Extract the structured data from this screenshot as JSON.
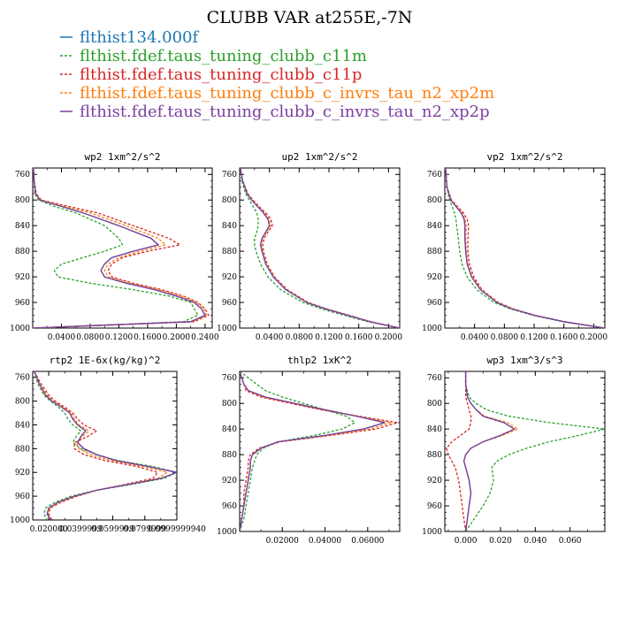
{
  "figure_title": "CLUBB VAR at255E,-7N",
  "legend": [
    {
      "name": "flthist134.000f",
      "color": "#1f77b4",
      "dash": "solid"
    },
    {
      "name": "flthist.fdef.taus_tuning_clubb_c11m",
      "color": "#2ca02c",
      "dash": "dashed"
    },
    {
      "name": "flthist.fdef.taus_tuning_clubb_c11p",
      "color": "#d62728",
      "dash": "dashed"
    },
    {
      "name": "flthist.fdef.taus_tuning_clubb_c_invrs_tau_n2_xp2m",
      "color": "#ff7f0e",
      "dash": "dashed"
    },
    {
      "name": "flthist.fdef.taus_tuning_clubb_c_invrs_tau_n2_xp2p",
      "color": "#7b3fa0",
      "dash": "solid"
    }
  ],
  "chart_data": [
    {
      "type": "line",
      "title": "wp2  1xm^2/s^2",
      "xlim": [
        0,
        0.25
      ],
      "ylim": [
        1000,
        750
      ],
      "x_ticks": [
        0.04,
        0.08,
        0.12,
        0.16,
        0.2,
        0.24
      ],
      "x_tick_labels": [
        "0.0400",
        "0.0800",
        "0.1200",
        "0.1600",
        "0.2000",
        "0.2400"
      ],
      "y_ticks": [
        760,
        800,
        840,
        880,
        920,
        960,
        1000
      ],
      "y": [
        750,
        770,
        790,
        800,
        810,
        820,
        840,
        860,
        870,
        880,
        890,
        900,
        910,
        920,
        930,
        940,
        950,
        960,
        970,
        980,
        990,
        1000
      ],
      "series": [
        {
          "values": [
            0.001,
            0.002,
            0.004,
            0.01,
            0.04,
            0.07,
            0.12,
            0.165,
            0.175,
            0.14,
            0.11,
            0.1,
            0.095,
            0.1,
            0.13,
            0.17,
            0.2,
            0.225,
            0.235,
            0.24,
            0.22,
            0.0
          ]
        },
        {
          "values": [
            0.001,
            0.002,
            0.003,
            0.008,
            0.03,
            0.06,
            0.1,
            0.12,
            0.125,
            0.1,
            0.07,
            0.04,
            0.03,
            0.035,
            0.08,
            0.14,
            0.19,
            0.22,
            0.225,
            0.23,
            0.21,
            0.0
          ]
        },
        {
          "values": [
            0.001,
            0.002,
            0.005,
            0.012,
            0.05,
            0.09,
            0.14,
            0.19,
            0.205,
            0.16,
            0.125,
            0.11,
            0.105,
            0.11,
            0.14,
            0.18,
            0.21,
            0.23,
            0.24,
            0.245,
            0.225,
            0.0
          ]
        },
        {
          "values": [
            0.001,
            0.002,
            0.004,
            0.011,
            0.045,
            0.08,
            0.13,
            0.175,
            0.185,
            0.15,
            0.12,
            0.105,
            0.1,
            0.105,
            0.135,
            0.175,
            0.205,
            0.228,
            0.238,
            0.242,
            0.222,
            0.0
          ]
        },
        {
          "values": [
            0.001,
            0.002,
            0.004,
            0.01,
            0.04,
            0.07,
            0.12,
            0.165,
            0.175,
            0.14,
            0.11,
            0.1,
            0.095,
            0.1,
            0.13,
            0.17,
            0.2,
            0.225,
            0.235,
            0.24,
            0.22,
            0.0
          ]
        }
      ]
    },
    {
      "type": "line",
      "title": "up2  1xm^2/s^2",
      "xlim": [
        0,
        0.215
      ],
      "ylim": [
        1000,
        750
      ],
      "x_ticks": [
        0.04,
        0.08,
        0.12,
        0.16,
        0.2
      ],
      "x_tick_labels": [
        "0.0400",
        "0.0800",
        "0.1200",
        "0.1600",
        "0.2000"
      ],
      "y_ticks": [
        760,
        800,
        840,
        880,
        920,
        960,
        1000
      ],
      "y": [
        750,
        770,
        790,
        800,
        810,
        820,
        830,
        840,
        850,
        860,
        870,
        880,
        900,
        920,
        940,
        960,
        970,
        980,
        990,
        1000
      ],
      "series": [
        {
          "values": [
            0.001,
            0.004,
            0.01,
            0.016,
            0.024,
            0.032,
            0.038,
            0.04,
            0.035,
            0.03,
            0.028,
            0.03,
            0.035,
            0.045,
            0.062,
            0.09,
            0.115,
            0.145,
            0.175,
            0.215
          ]
        },
        {
          "values": [
            0.001,
            0.003,
            0.008,
            0.013,
            0.018,
            0.023,
            0.025,
            0.025,
            0.023,
            0.02,
            0.02,
            0.022,
            0.028,
            0.038,
            0.055,
            0.085,
            0.11,
            0.14,
            0.172,
            0.215
          ]
        },
        {
          "values": [
            0.001,
            0.004,
            0.011,
            0.018,
            0.026,
            0.035,
            0.042,
            0.044,
            0.038,
            0.033,
            0.031,
            0.032,
            0.037,
            0.047,
            0.064,
            0.092,
            0.117,
            0.147,
            0.176,
            0.215
          ]
        },
        {
          "values": [
            0.001,
            0.004,
            0.01,
            0.017,
            0.025,
            0.033,
            0.04,
            0.042,
            0.036,
            0.031,
            0.029,
            0.031,
            0.036,
            0.046,
            0.063,
            0.091,
            0.116,
            0.146,
            0.175,
            0.215
          ]
        },
        {
          "values": [
            0.001,
            0.004,
            0.01,
            0.016,
            0.024,
            0.032,
            0.038,
            0.04,
            0.035,
            0.03,
            0.028,
            0.03,
            0.035,
            0.045,
            0.062,
            0.09,
            0.115,
            0.145,
            0.175,
            0.215
          ]
        }
      ]
    },
    {
      "type": "line",
      "title": "vp2  1xm^2/s^2",
      "xlim": [
        0,
        0.215
      ],
      "ylim": [
        1000,
        750
      ],
      "x_ticks": [
        0.04,
        0.08,
        0.12,
        0.16,
        0.2
      ],
      "x_tick_labels": [
        "0.0400",
        "0.0800",
        "0.1200",
        "0.1600",
        "0.2000"
      ],
      "y_ticks": [
        760,
        800,
        840,
        880,
        920,
        960,
        1000
      ],
      "y": [
        750,
        780,
        800,
        810,
        820,
        830,
        840,
        860,
        880,
        900,
        920,
        940,
        960,
        970,
        980,
        990,
        1000
      ],
      "series": [
        {
          "values": [
            0.001,
            0.003,
            0.008,
            0.015,
            0.022,
            0.026,
            0.027,
            0.027,
            0.028,
            0.03,
            0.036,
            0.048,
            0.07,
            0.09,
            0.12,
            0.16,
            0.215
          ]
        },
        {
          "values": [
            0.001,
            0.003,
            0.006,
            0.01,
            0.013,
            0.015,
            0.016,
            0.018,
            0.02,
            0.023,
            0.03,
            0.043,
            0.066,
            0.088,
            0.118,
            0.158,
            0.215
          ]
        },
        {
          "values": [
            0.001,
            0.003,
            0.009,
            0.017,
            0.025,
            0.03,
            0.032,
            0.031,
            0.031,
            0.033,
            0.039,
            0.05,
            0.072,
            0.092,
            0.121,
            0.161,
            0.215
          ]
        },
        {
          "values": [
            0.001,
            0.003,
            0.008,
            0.016,
            0.023,
            0.027,
            0.029,
            0.028,
            0.029,
            0.031,
            0.037,
            0.049,
            0.071,
            0.091,
            0.12,
            0.16,
            0.215
          ]
        },
        {
          "values": [
            0.001,
            0.003,
            0.008,
            0.015,
            0.022,
            0.026,
            0.027,
            0.027,
            0.028,
            0.03,
            0.036,
            0.048,
            0.07,
            0.09,
            0.12,
            0.16,
            0.215
          ]
        }
      ]
    },
    {
      "type": "line",
      "title": "rtp2  1E-6x(kg/kg)^2",
      "xlim": [
        0.01,
        0.1
      ],
      "ylim": [
        1000,
        750
      ],
      "x_ticks": [
        0.02,
        0.04,
        0.06,
        0.08,
        0.1
      ],
      "x_tick_labels": [
        "0.020000",
        "0.0399999",
        "0.0599999",
        "0.0799999",
        "0.0999999940"
      ],
      "y_ticks": [
        760,
        800,
        840,
        880,
        920,
        960,
        1000
      ],
      "y": [
        750,
        770,
        790,
        800,
        810,
        820,
        830,
        840,
        850,
        860,
        870,
        880,
        890,
        900,
        910,
        920,
        930,
        940,
        950,
        960,
        970,
        980,
        990,
        1000
      ],
      "series": [
        {
          "values": [
            0.011,
            0.014,
            0.018,
            0.022,
            0.028,
            0.033,
            0.035,
            0.038,
            0.043,
            0.04,
            0.038,
            0.042,
            0.05,
            0.062,
            0.082,
            0.1,
            0.09,
            0.07,
            0.05,
            0.036,
            0.026,
            0.02,
            0.019,
            0.021
          ]
        },
        {
          "values": [
            0.011,
            0.013,
            0.017,
            0.021,
            0.026,
            0.03,
            0.032,
            0.035,
            0.04,
            0.037,
            0.035,
            0.04,
            0.05,
            0.063,
            0.085,
            0.1,
            0.092,
            0.072,
            0.05,
            0.034,
            0.024,
            0.018,
            0.017,
            0.019
          ]
        },
        {
          "values": [
            0.011,
            0.015,
            0.02,
            0.024,
            0.03,
            0.035,
            0.038,
            0.042,
            0.05,
            0.044,
            0.036,
            0.036,
            0.042,
            0.055,
            0.075,
            0.088,
            0.085,
            0.068,
            0.05,
            0.038,
            0.028,
            0.021,
            0.02,
            0.022
          ]
        },
        {
          "values": [
            0.011,
            0.014,
            0.019,
            0.023,
            0.029,
            0.034,
            0.036,
            0.039,
            0.045,
            0.041,
            0.037,
            0.039,
            0.046,
            0.059,
            0.079,
            0.094,
            0.088,
            0.069,
            0.05,
            0.037,
            0.027,
            0.021,
            0.019,
            0.021
          ]
        },
        {
          "values": [
            0.011,
            0.014,
            0.018,
            0.022,
            0.028,
            0.033,
            0.035,
            0.038,
            0.043,
            0.04,
            0.038,
            0.042,
            0.05,
            0.062,
            0.082,
            0.1,
            0.09,
            0.07,
            0.05,
            0.036,
            0.026,
            0.02,
            0.019,
            0.021
          ]
        }
      ]
    },
    {
      "type": "line",
      "title": "thlp2  1xK^2",
      "xlim": [
        0,
        0.075
      ],
      "ylim": [
        1000,
        750
      ],
      "x_ticks": [
        0.02,
        0.04,
        0.06
      ],
      "x_tick_labels": [
        "0.02000",
        "0.04000",
        "0.06000"
      ],
      "y_ticks": [
        760,
        800,
        840,
        880,
        920,
        960,
        1000
      ],
      "y": [
        750,
        760,
        770,
        780,
        790,
        800,
        810,
        820,
        830,
        840,
        850,
        860,
        870,
        880,
        890,
        900,
        920,
        940,
        960,
        980,
        1000
      ],
      "series": [
        {
          "values": [
            0.0,
            0.001,
            0.002,
            0.004,
            0.012,
            0.026,
            0.04,
            0.055,
            0.068,
            0.058,
            0.04,
            0.018,
            0.01,
            0.006,
            0.005,
            0.005,
            0.004,
            0.003,
            0.002,
            0.001,
            0.0
          ]
        },
        {
          "values": [
            0.0,
            0.004,
            0.008,
            0.012,
            0.02,
            0.03,
            0.04,
            0.05,
            0.054,
            0.048,
            0.035,
            0.018,
            0.011,
            0.008,
            0.007,
            0.006,
            0.005,
            0.004,
            0.003,
            0.002,
            0.0
          ]
        },
        {
          "values": [
            0.0,
            0.001,
            0.002,
            0.003,
            0.01,
            0.024,
            0.038,
            0.056,
            0.074,
            0.064,
            0.043,
            0.019,
            0.009,
            0.005,
            0.004,
            0.004,
            0.003,
            0.002,
            0.002,
            0.001,
            0.0
          ]
        },
        {
          "values": [
            0.0,
            0.001,
            0.002,
            0.004,
            0.011,
            0.025,
            0.039,
            0.055,
            0.071,
            0.061,
            0.042,
            0.018,
            0.01,
            0.006,
            0.005,
            0.005,
            0.004,
            0.003,
            0.002,
            0.001,
            0.0
          ]
        },
        {
          "values": [
            0.0,
            0.001,
            0.002,
            0.004,
            0.012,
            0.026,
            0.04,
            0.055,
            0.068,
            0.058,
            0.04,
            0.018,
            0.01,
            0.006,
            0.005,
            0.005,
            0.004,
            0.003,
            0.002,
            0.001,
            0.0
          ]
        }
      ]
    },
    {
      "type": "line",
      "title": "wp3  1xm^3/s^3",
      "xlim": [
        -0.012,
        0.08
      ],
      "ylim": [
        1000,
        750
      ],
      "x_ticks": [
        0.0,
        0.02,
        0.04,
        0.06
      ],
      "x_tick_labels": [
        "0.000",
        "0.020",
        "0.040",
        "0.060"
      ],
      "y_ticks": [
        760,
        800,
        840,
        880,
        920,
        960,
        1000
      ],
      "y": [
        750,
        770,
        790,
        800,
        810,
        820,
        830,
        840,
        850,
        860,
        870,
        880,
        890,
        900,
        920,
        940,
        960,
        980,
        1000
      ],
      "series": [
        {
          "values": [
            0.0,
            0.0,
            0.001,
            0.003,
            0.006,
            0.01,
            0.022,
            0.028,
            0.02,
            0.01,
            0.003,
            0.0,
            -0.001,
            0.0,
            0.002,
            0.003,
            0.002,
            0.001,
            0.0
          ]
        },
        {
          "values": [
            0.0,
            0.0,
            0.002,
            0.006,
            0.012,
            0.025,
            0.048,
            0.08,
            0.065,
            0.048,
            0.035,
            0.025,
            0.018,
            0.015,
            0.016,
            0.014,
            0.01,
            0.005,
            0.0
          ]
        },
        {
          "values": [
            0.0,
            0.0,
            0.0,
            0.001,
            0.002,
            0.003,
            0.003,
            0.002,
            -0.003,
            -0.008,
            -0.011,
            -0.01,
            -0.008,
            -0.006,
            -0.004,
            -0.003,
            -0.002,
            -0.001,
            0.0
          ]
        },
        {
          "values": [
            0.0,
            0.0,
            0.001,
            0.003,
            0.006,
            0.011,
            0.024,
            0.03,
            0.021,
            0.01,
            0.003,
            0.0,
            -0.001,
            0.0,
            0.002,
            0.003,
            0.002,
            0.001,
            0.0
          ]
        },
        {
          "values": [
            0.0,
            0.0,
            0.001,
            0.003,
            0.006,
            0.01,
            0.022,
            0.028,
            0.02,
            0.01,
            0.003,
            0.0,
            -0.001,
            0.0,
            0.002,
            0.003,
            0.002,
            0.001,
            0.0
          ]
        }
      ]
    }
  ]
}
